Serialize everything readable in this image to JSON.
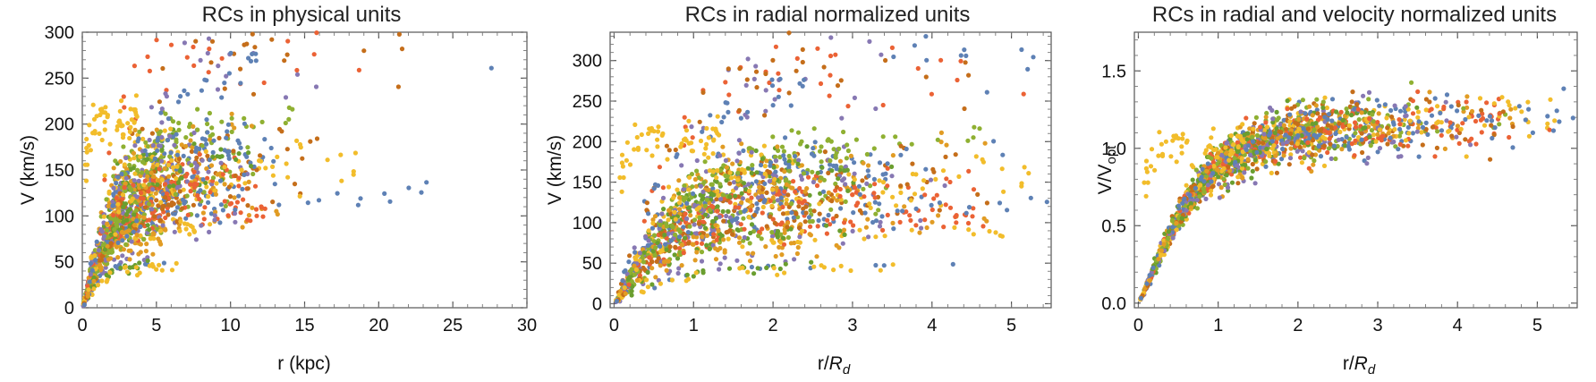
{
  "colors": [
    "#5e81b5",
    "#e19c24",
    "#8fb032",
    "#eb6235",
    "#8778b3",
    "#c56e1a",
    "#6a9e2f",
    "#f2bd2b"
  ],
  "chart_data": [
    {
      "type": "scatter",
      "title": "RCs in physical units",
      "xlabel": "r (kpc)",
      "ylabel": "V (km/s)",
      "xlim": [
        0,
        30
      ],
      "ylim": [
        0,
        300
      ],
      "xticks": [
        0,
        5,
        10,
        15,
        20,
        25,
        30
      ],
      "yticks": [
        0,
        50,
        100,
        150,
        200,
        250,
        300
      ],
      "series_count": 8,
      "notes": "Rotation-curve points for many galaxies; dense cloud at r < 10 kpc with V 20-160 km/s, a yellow branch reaching ~200 km/s, high points ~250 km/s, blue points to r ~ 24 kpc at ~100 km/s."
    },
    {
      "type": "scatter",
      "title": "RCs in radial normalized units",
      "xlabel_main": "r/",
      "xlabel_italic": "R",
      "xlabel_sub": "d",
      "ylabel": "V (km/s)",
      "xlim": [
        -0.05,
        5.5
      ],
      "ylim": [
        -5,
        335
      ],
      "xticks": [
        0,
        1,
        2,
        3,
        4,
        5
      ],
      "yticks": [
        0,
        50,
        100,
        150,
        200,
        250,
        300
      ],
      "series_count": 8,
      "notes": "Same curves with radius normalized by disk scale length; points spread to r/Rd ~ 5.4."
    },
    {
      "type": "scatter",
      "title": "RCs in radial and velocity normalized units",
      "xlabel_main": "r/",
      "xlabel_italic": "R",
      "xlabel_sub": "d",
      "ylabel_main": "V/V",
      "ylabel_sub": "opt",
      "xlim": [
        -0.05,
        5.5
      ],
      "ylim": [
        -0.03,
        1.75
      ],
      "xticks": [
        0,
        1,
        2,
        3,
        4,
        5
      ],
      "yticks": [
        0.0,
        0.5,
        1.0,
        1.5
      ],
      "ytick_labels": [
        "0.0",
        "0.5",
        "1.0",
        "1.5"
      ],
      "series_count": 8,
      "notes": "Universal rotation curve: V/Vopt rises steeply to ~1.0 by r/Rd ~ 2-3 then flat ~1.0-1.1."
    }
  ]
}
